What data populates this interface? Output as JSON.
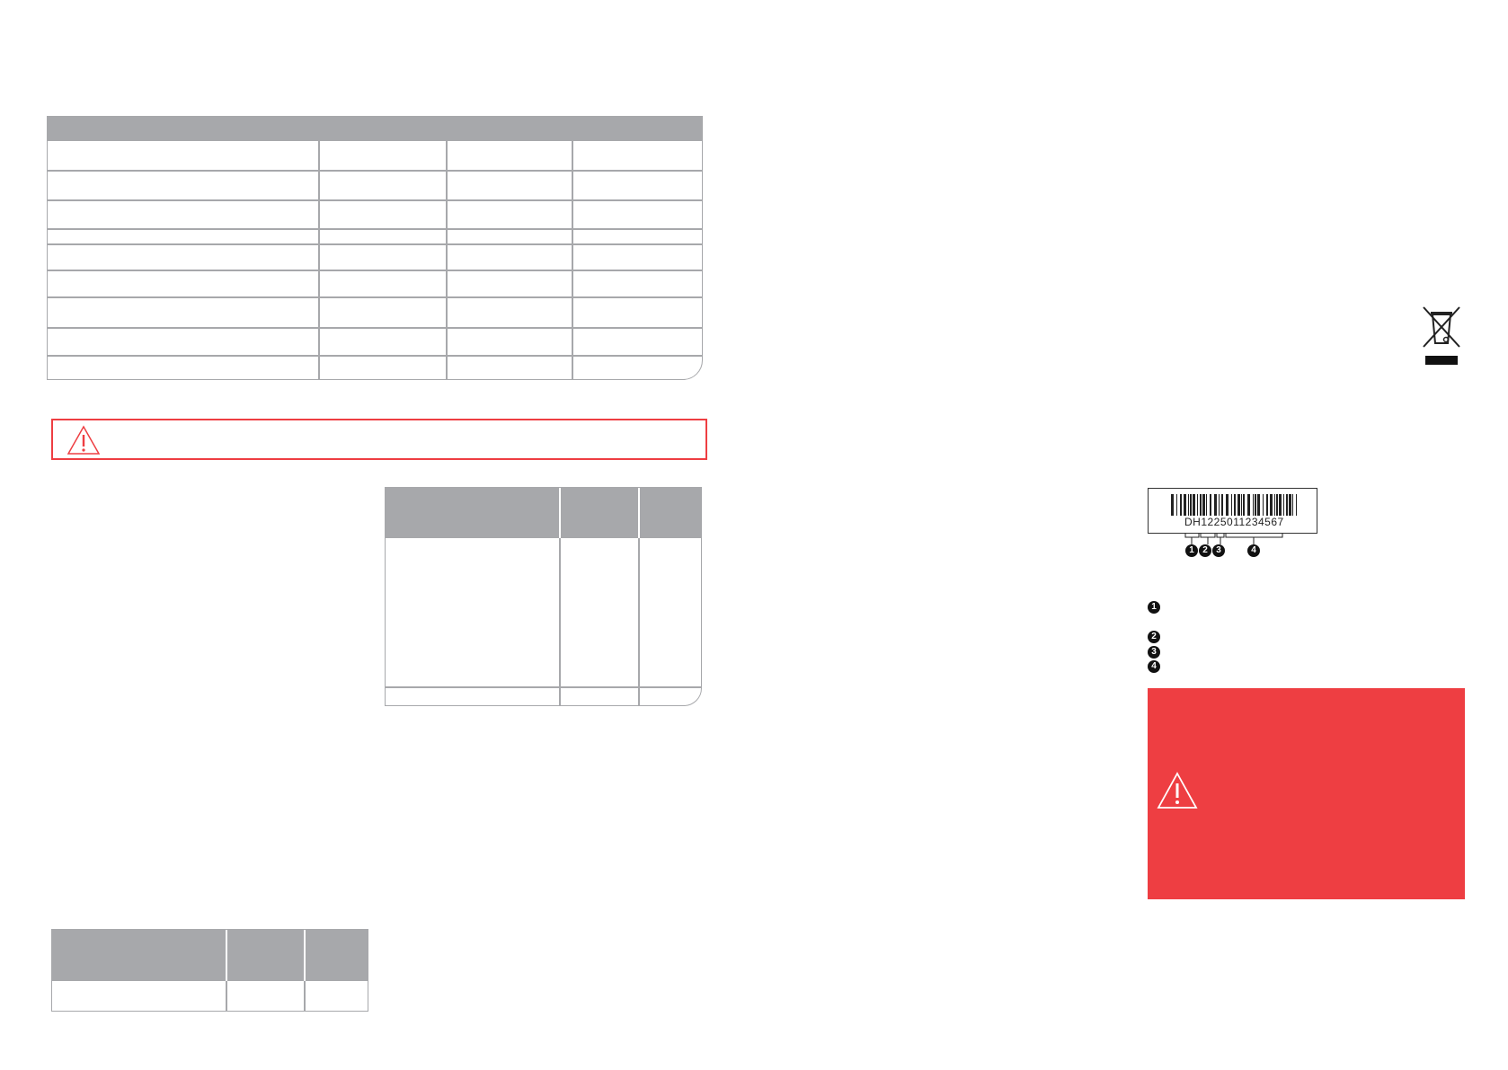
{
  "colors": {
    "table_header": "#a7a8ab",
    "warning_red": "#ee3e42"
  },
  "barcode": {
    "text": "DH1225011234567",
    "segments": [
      "DH",
      "122",
      "5",
      "011234567"
    ],
    "markers": [
      "1",
      "2",
      "3",
      "4"
    ]
  },
  "legend": {
    "items": [
      "1",
      "2",
      "3",
      "4"
    ]
  },
  "icons": [
    "warning-triangle-icon",
    "weee-crossed-bin-icon",
    "barcode"
  ]
}
